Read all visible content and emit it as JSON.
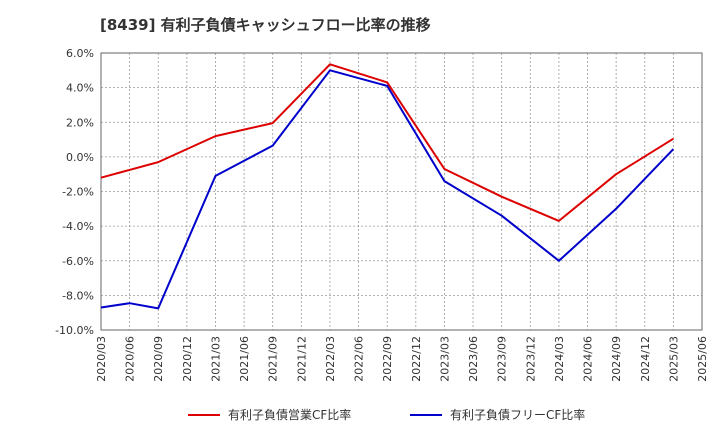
{
  "chart_data": {
    "type": "line",
    "title": "[8439]  有利子負債キャッシュフロー比率の推移",
    "x": [
      "2020/03",
      "2020/06",
      "2020/09",
      "2020/12",
      "2021/03",
      "2021/06",
      "2021/09",
      "2021/12",
      "2022/03",
      "2022/06",
      "2022/09",
      "2022/12",
      "2023/03",
      "2023/06",
      "2023/09",
      "2023/12",
      "2024/03",
      "2024/06",
      "2024/09",
      "2024/12",
      "2025/03",
      "2025/06"
    ],
    "ylim": [
      -10,
      6
    ],
    "y_ticks": [
      "6.0%",
      "4.0%",
      "2.0%",
      "0.0%",
      "-2.0%",
      "-4.0%",
      "-6.0%",
      "-8.0%",
      "-10.0%"
    ],
    "y_tick_values": [
      6,
      4,
      2,
      0,
      -2,
      -4,
      -6,
      -8,
      -10
    ],
    "grid": true,
    "legend_position": "bottom",
    "series": [
      {
        "name": "有利子負債営業CF比率",
        "color": "#dd0000",
        "points": [
          [
            "2020/03",
            -1.2
          ],
          [
            "2020/09",
            -0.3
          ],
          [
            "2021/03",
            1.2
          ],
          [
            "2021/09",
            1.95
          ],
          [
            "2022/03",
            5.35
          ],
          [
            "2022/09",
            4.3
          ],
          [
            "2023/03",
            -0.7
          ],
          [
            "2023/09",
            -2.3
          ],
          [
            "2024/03",
            -3.7
          ],
          [
            "2024/09",
            -1.0
          ],
          [
            "2025/03",
            1.05
          ]
        ]
      },
      {
        "name": "有利子負債フリーCF比率",
        "color": "#0000cc",
        "points": [
          [
            "2020/03",
            -8.7
          ],
          [
            "2020/06",
            -8.45
          ],
          [
            "2020/09",
            -8.75
          ],
          [
            "2021/03",
            -1.1
          ],
          [
            "2021/09",
            0.65
          ],
          [
            "2022/03",
            5.0
          ],
          [
            "2022/09",
            4.1
          ],
          [
            "2023/03",
            -1.4
          ],
          [
            "2023/09",
            -3.4
          ],
          [
            "2024/03",
            -6.0
          ],
          [
            "2024/09",
            -3.0
          ],
          [
            "2025/03",
            0.45
          ]
        ]
      }
    ]
  }
}
